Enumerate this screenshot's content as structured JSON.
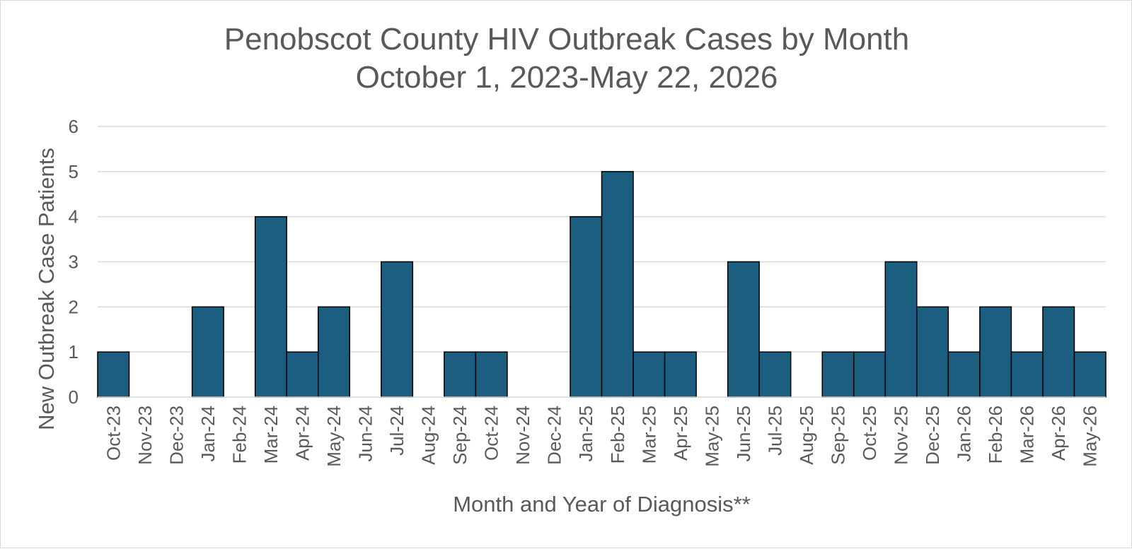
{
  "chart_data": {
    "type": "bar",
    "title": "Penobscot County HIV Outbreak Cases by Month",
    "subtitle": "October 1, 2023-May 22, 2026",
    "xlabel": "Month and Year of Diagnosis**",
    "ylabel": "New Outbreak Case Patients",
    "ylim": [
      0,
      6
    ],
    "yticks": [
      "0",
      "1",
      "2",
      "3",
      "4",
      "5",
      "6"
    ],
    "grid": true,
    "legend": "none",
    "bar_color": "#1b5e80",
    "bar_edge_color": "#000000",
    "categories": [
      "Oct-23",
      "Nov-23",
      "Dec-23",
      "Jan-24",
      "Feb-24",
      "Mar-24",
      "Apr-24",
      "May-24",
      "Jun-24",
      "Jul-24",
      "Aug-24",
      "Sep-24",
      "Oct-24",
      "Nov-24",
      "Dec-24",
      "Jan-25",
      "Feb-25",
      "Mar-25",
      "Apr-25",
      "May-25",
      "Jun-25",
      "Jul-25",
      "Aug-25",
      "Sep-25",
      "Oct-25",
      "Nov-25",
      "Dec-25",
      "Jan-26",
      "Feb-26",
      "Mar-26",
      "Apr-26",
      "May-26"
    ],
    "values": [
      1,
      0,
      0,
      2,
      0,
      4,
      1,
      2,
      0,
      3,
      0,
      1,
      1,
      0,
      0,
      4,
      5,
      1,
      1,
      0,
      3,
      1,
      0,
      1,
      1,
      3,
      2,
      1,
      2,
      1,
      2,
      1
    ]
  }
}
